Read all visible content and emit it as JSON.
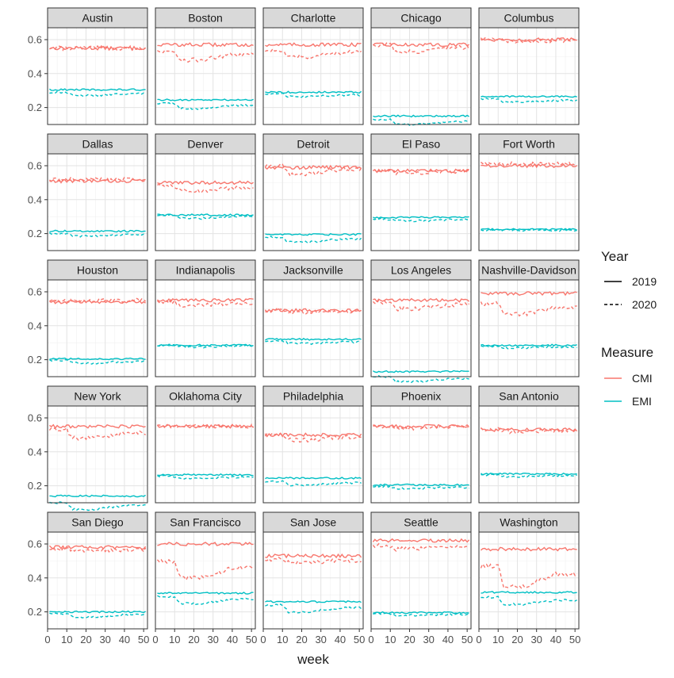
{
  "chart_data": {
    "type": "line",
    "title": "",
    "xlabel": "week",
    "ylabel": "",
    "xlim": [
      0,
      52
    ],
    "ylim": [
      0.1,
      0.67
    ],
    "x_ticks": [
      0,
      10,
      20,
      30,
      40,
      50
    ],
    "y_ticks": [
      0.2,
      0.4,
      0.6
    ],
    "grid": true,
    "legend": {
      "position": "right",
      "year_title": "Year",
      "year_entries": [
        "2019",
        "2020"
      ],
      "measure_title": "Measure",
      "measure_entries": [
        "CMI",
        "EMI"
      ]
    },
    "colors": {
      "CMI": "#F8766D",
      "EMI": "#00BFC4"
    },
    "panels": [
      {
        "city": "Austin",
        "cmi_2019": 0.55,
        "cmi_2020": 0.55,
        "emi_2019": 0.305,
        "emi_2020": 0.29,
        "cmi_dip": 0.0,
        "emi_dip": 0.02
      },
      {
        "city": "Boston",
        "cmi_2019": 0.57,
        "cmi_2020": 0.53,
        "emi_2019": 0.245,
        "emi_2020": 0.225,
        "cmi_dip": 0.05,
        "emi_dip": 0.03
      },
      {
        "city": "Charlotte",
        "cmi_2019": 0.57,
        "cmi_2020": 0.54,
        "emi_2019": 0.29,
        "emi_2020": 0.28,
        "cmi_dip": 0.04,
        "emi_dip": 0.015
      },
      {
        "city": "Chicago",
        "cmi_2019": 0.57,
        "cmi_2020": 0.57,
        "emi_2019": 0.15,
        "emi_2020": 0.13,
        "cmi_dip": 0.04,
        "emi_dip": 0.03
      },
      {
        "city": "Columbus",
        "cmi_2019": 0.6,
        "cmi_2020": 0.6,
        "emi_2019": 0.265,
        "emi_2020": 0.25,
        "cmi_dip": 0.01,
        "emi_dip": 0.02
      },
      {
        "city": "Dallas",
        "cmi_2019": 0.51,
        "cmi_2020": 0.52,
        "emi_2019": 0.215,
        "emi_2020": 0.2,
        "cmi_dip": 0.0,
        "emi_dip": 0.015
      },
      {
        "city": "Denver",
        "cmi_2019": 0.5,
        "cmi_2020": 0.48,
        "emi_2019": 0.31,
        "emi_2020": 0.31,
        "cmi_dip": 0.03,
        "emi_dip": 0.02
      },
      {
        "city": "Detroit",
        "cmi_2019": 0.59,
        "cmi_2020": 0.6,
        "emi_2019": 0.195,
        "emi_2020": 0.18,
        "cmi_dip": 0.05,
        "emi_dip": 0.03
      },
      {
        "city": "El Paso",
        "cmi_2019": 0.57,
        "cmi_2020": 0.57,
        "emi_2019": 0.295,
        "emi_2020": 0.285,
        "cmi_dip": 0.01,
        "emi_dip": 0.01
      },
      {
        "city": "Fort Worth",
        "cmi_2019": 0.6,
        "cmi_2020": 0.61,
        "emi_2019": 0.225,
        "emi_2020": 0.22,
        "cmi_dip": 0.0,
        "emi_dip": 0.0
      },
      {
        "city": "Houston",
        "cmi_2019": 0.54,
        "cmi_2020": 0.55,
        "emi_2019": 0.205,
        "emi_2020": 0.195,
        "cmi_dip": 0.0,
        "emi_dip": 0.015
      },
      {
        "city": "Indianapolis",
        "cmi_2019": 0.55,
        "cmi_2020": 0.54,
        "emi_2019": 0.285,
        "emi_2020": 0.285,
        "cmi_dip": 0.02,
        "emi_dip": 0.01
      },
      {
        "city": "Jacksonville",
        "cmi_2019": 0.49,
        "cmi_2020": 0.49,
        "emi_2019": 0.32,
        "emi_2020": 0.31,
        "cmi_dip": 0.01,
        "emi_dip": 0.015
      },
      {
        "city": "Los Angeles",
        "cmi_2019": 0.55,
        "cmi_2020": 0.54,
        "emi_2019": 0.13,
        "emi_2020": 0.1,
        "cmi_dip": 0.04,
        "emi_dip": 0.03
      },
      {
        "city": "Nashville-Davidson",
        "cmi_2019": 0.59,
        "cmi_2020": 0.53,
        "emi_2019": 0.285,
        "emi_2020": 0.28,
        "cmi_dip": 0.06,
        "emi_dip": 0.01
      },
      {
        "city": "New York",
        "cmi_2019": 0.55,
        "cmi_2020": 0.53,
        "emi_2019": 0.14,
        "emi_2020": 0.1,
        "cmi_dip": 0.05,
        "emi_dip": 0.04
      },
      {
        "city": "Oklahoma City",
        "cmi_2019": 0.55,
        "cmi_2020": 0.55,
        "emi_2019": 0.265,
        "emi_2020": 0.255,
        "cmi_dip": 0.0,
        "emi_dip": 0.01
      },
      {
        "city": "Philadelphia",
        "cmi_2019": 0.5,
        "cmi_2020": 0.5,
        "emi_2019": 0.245,
        "emi_2020": 0.225,
        "cmi_dip": 0.03,
        "emi_dip": 0.02
      },
      {
        "city": "Phoenix",
        "cmi_2019": 0.55,
        "cmi_2020": 0.55,
        "emi_2019": 0.205,
        "emi_2020": 0.195,
        "cmi_dip": 0.01,
        "emi_dip": 0.01
      },
      {
        "city": "San Antonio",
        "cmi_2019": 0.53,
        "cmi_2020": 0.53,
        "emi_2019": 0.27,
        "emi_2020": 0.265,
        "cmi_dip": 0.01,
        "emi_dip": 0.01
      },
      {
        "city": "San Diego",
        "cmi_2019": 0.58,
        "cmi_2020": 0.57,
        "emi_2019": 0.2,
        "emi_2020": 0.19,
        "cmi_dip": 0.01,
        "emi_dip": 0.02
      },
      {
        "city": "San Francisco",
        "cmi_2019": 0.6,
        "cmi_2020": 0.5,
        "emi_2019": 0.31,
        "emi_2020": 0.29,
        "cmi_dip": 0.1,
        "emi_dip": 0.04
      },
      {
        "city": "San Jose",
        "cmi_2019": 0.53,
        "cmi_2020": 0.51,
        "emi_2019": 0.26,
        "emi_2020": 0.24,
        "cmi_dip": 0.02,
        "emi_dip": 0.04
      },
      {
        "city": "Seattle",
        "cmi_2019": 0.62,
        "cmi_2020": 0.59,
        "emi_2019": 0.195,
        "emi_2020": 0.19,
        "cmi_dip": 0.02,
        "emi_dip": 0.01
      },
      {
        "city": "Washington",
        "cmi_2019": 0.57,
        "cmi_2020": 0.47,
        "emi_2019": 0.315,
        "emi_2020": 0.285,
        "cmi_dip": 0.12,
        "emi_dip": 0.04
      }
    ]
  }
}
